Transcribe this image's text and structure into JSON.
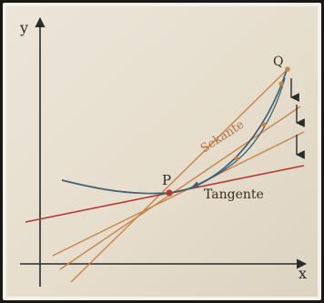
{
  "figure": {
    "axis_y_label": "y",
    "axis_x_label": "x",
    "point_p_label": "P",
    "point_q_label": "Q",
    "secant_label": "Sekante",
    "tangent_label": "Tangente"
  },
  "colors": {
    "paper": "#e8e0d2",
    "paper_border": "#ffffff",
    "axis": "#2b2b2b",
    "curve": "#3f5f73",
    "secant": "#c8844a",
    "tangent": "#b23a34",
    "point": "#b23a34",
    "label": "#3d2a1c"
  },
  "icons": {
    "secant_points": "dot",
    "movement": "down-arrow"
  }
}
